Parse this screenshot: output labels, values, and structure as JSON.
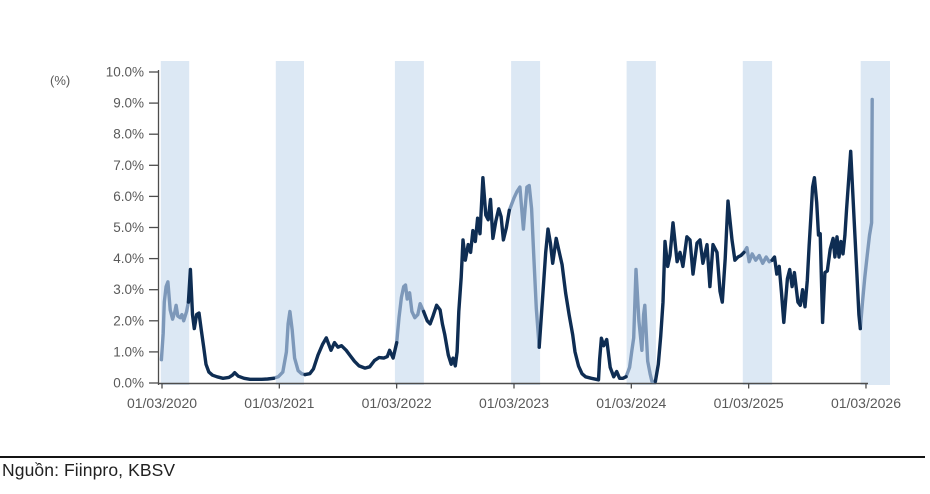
{
  "figure": {
    "unit_label": "(%)",
    "source": {
      "label": "Nguồn: Fiinpro, KBSV"
    }
  },
  "colors": {
    "line_dark": "#0e2d53",
    "line_light": "#7d98b9",
    "band_fill": "#dce8f4",
    "axis": "#4d4d4d",
    "tick_label": "#595959",
    "source_rule": "#141414",
    "source_text": "#212121",
    "background": "#ffffff"
  },
  "chart_data": {
    "type": "line",
    "title": "",
    "xlabel": "",
    "ylabel": "(%)",
    "grid": "off",
    "legend": "none",
    "ylim": [
      0,
      10
    ],
    "xlim_years_from_2020_03_01": [
      -0.04,
      6.27
    ],
    "y_tick_labels": [
      "0.0%",
      "1.0%",
      "2.0%",
      "3.0%",
      "4.0%",
      "5.0%",
      "6.0%",
      "7.0%",
      "8.0%",
      "9.0%",
      "10.0%"
    ],
    "x_tick_labels": [
      "01/03/2020",
      "01/03/2021",
      "01/03/2022",
      "01/03/2023",
      "01/03/2024",
      "01/03/2025",
      "01/03/2026"
    ],
    "x_tick_positions_years": [
      0,
      1,
      2,
      3,
      4,
      5,
      6
    ],
    "highlight_bands_x": [
      [
        -0.01,
        0.232
      ],
      [
        0.97,
        1.21
      ],
      [
        1.985,
        2.232
      ],
      [
        2.975,
        3.222
      ],
      [
        3.96,
        4.21
      ],
      [
        4.95,
        5.2
      ],
      [
        5.955,
        6.205
      ]
    ],
    "band_style": "vertical shaded annual periods; line rendered in light color inside bands, dark outside",
    "series": {
      "x_years_from_2020_03_01": [
        -0.005,
        0.01,
        0.02,
        0.035,
        0.05,
        0.07,
        0.09,
        0.11,
        0.12,
        0.135,
        0.155,
        0.17,
        0.185,
        0.21,
        0.225,
        0.242,
        0.26,
        0.275,
        0.295,
        0.315,
        0.335,
        0.355,
        0.375,
        0.4,
        0.43,
        0.47,
        0.52,
        0.57,
        0.6,
        0.62,
        0.65,
        0.7,
        0.75,
        0.8,
        0.85,
        0.9,
        0.95,
        0.99,
        1.03,
        1.06,
        1.075,
        1.09,
        1.11,
        1.13,
        1.16,
        1.19,
        1.22,
        1.26,
        1.29,
        1.33,
        1.37,
        1.4,
        1.44,
        1.47,
        1.5,
        1.53,
        1.57,
        1.6,
        1.64,
        1.68,
        1.73,
        1.77,
        1.81,
        1.85,
        1.89,
        1.92,
        1.94,
        1.97,
        2.0,
        2.02,
        2.04,
        2.06,
        2.075,
        2.09,
        2.11,
        2.13,
        2.155,
        2.18,
        2.2,
        2.23,
        2.26,
        2.285,
        2.31,
        2.34,
        2.37,
        2.39,
        2.41,
        2.44,
        2.465,
        2.48,
        2.5,
        2.515,
        2.53,
        2.55,
        2.565,
        2.585,
        2.61,
        2.63,
        2.65,
        2.67,
        2.69,
        2.71,
        2.735,
        2.76,
        2.78,
        2.8,
        2.82,
        2.845,
        2.87,
        2.89,
        2.91,
        2.935,
        2.96,
        3.0,
        3.025,
        3.05,
        3.08,
        3.11,
        3.13,
        3.15,
        3.17,
        3.19,
        3.215,
        3.24,
        3.27,
        3.29,
        3.31,
        3.33,
        3.36,
        3.38,
        3.41,
        3.44,
        3.47,
        3.5,
        3.52,
        3.55,
        3.58,
        3.61,
        3.66,
        3.7,
        3.72,
        3.73,
        3.745,
        3.765,
        3.79,
        3.82,
        3.85,
        3.875,
        3.9,
        3.93,
        3.955,
        3.985,
        4.005,
        4.02,
        4.04,
        4.065,
        4.09,
        4.105,
        4.115,
        4.14,
        4.16,
        4.175,
        4.205,
        4.23,
        4.25,
        4.27,
        4.287,
        4.31,
        4.33,
        4.355,
        4.39,
        4.415,
        4.44,
        4.474,
        4.5,
        4.526,
        4.56,
        4.585,
        4.61,
        4.645,
        4.67,
        4.696,
        4.73,
        4.756,
        4.775,
        4.8,
        4.824,
        4.858,
        4.883,
        4.909,
        4.934,
        4.96,
        4.985,
        5.005,
        5.03,
        5.06,
        5.09,
        5.12,
        5.15,
        5.175,
        5.2,
        5.22,
        5.24,
        5.26,
        5.28,
        5.3,
        5.33,
        5.35,
        5.37,
        5.39,
        5.42,
        5.44,
        5.46,
        5.48,
        5.5,
        5.515,
        5.53,
        5.545,
        5.56,
        5.58,
        5.595,
        5.61,
        5.63,
        5.65,
        5.67,
        5.695,
        5.72,
        5.735,
        5.753,
        5.77,
        5.787,
        5.804,
        5.82,
        5.835,
        5.87,
        5.9,
        5.923,
        5.94,
        5.952,
        5.97,
        5.99,
        6.01,
        6.03,
        6.048,
        6.053
      ],
      "values_pct": [
        0.75,
        1.6,
        2.6,
        3.1,
        3.25,
        2.35,
        2.05,
        2.3,
        2.5,
        2.15,
        2.1,
        2.2,
        2.0,
        2.3,
        2.6,
        3.65,
        2.2,
        1.75,
        2.2,
        2.25,
        1.7,
        1.15,
        0.6,
        0.35,
        0.25,
        0.2,
        0.15,
        0.18,
        0.25,
        0.33,
        0.22,
        0.15,
        0.12,
        0.12,
        0.12,
        0.13,
        0.15,
        0.2,
        0.35,
        1.0,
        1.9,
        2.3,
        1.7,
        0.8,
        0.4,
        0.3,
        0.27,
        0.3,
        0.45,
        0.9,
        1.25,
        1.45,
        1.05,
        1.3,
        1.15,
        1.2,
        1.05,
        0.9,
        0.7,
        0.55,
        0.48,
        0.52,
        0.72,
        0.82,
        0.8,
        0.85,
        1.05,
        0.8,
        1.3,
        2.1,
        2.75,
        3.1,
        3.15,
        2.7,
        2.9,
        2.3,
        2.1,
        2.2,
        2.55,
        2.3,
        2.0,
        1.9,
        2.15,
        2.5,
        2.35,
        1.9,
        1.55,
        0.9,
        0.6,
        0.8,
        0.55,
        1.0,
        2.3,
        3.4,
        4.6,
        3.95,
        4.45,
        4.2,
        4.9,
        4.55,
        5.3,
        4.8,
        6.6,
        5.4,
        5.25,
        5.9,
        4.65,
        5.2,
        5.6,
        5.35,
        4.6,
        5.0,
        5.55,
        5.95,
        6.15,
        6.3,
        4.95,
        6.3,
        6.35,
        5.6,
        4.0,
        2.4,
        1.15,
        2.5,
        4.2,
        4.95,
        4.5,
        3.85,
        4.65,
        4.3,
        3.8,
        2.9,
        2.2,
        1.55,
        1.0,
        0.55,
        0.3,
        0.2,
        0.15,
        0.12,
        0.1,
        0.75,
        1.44,
        1.2,
        1.4,
        0.5,
        0.2,
        0.37,
        0.15,
        0.15,
        0.2,
        0.5,
        1.05,
        1.45,
        3.65,
        2.0,
        1.05,
        2.2,
        2.5,
        0.7,
        0.3,
        0.05,
        0.05,
        0.6,
        1.5,
        2.6,
        4.55,
        3.75,
        4.1,
        5.15,
        3.9,
        4.2,
        3.75,
        4.7,
        4.6,
        3.5,
        4.5,
        4.6,
        3.85,
        4.45,
        3.1,
        4.45,
        4.2,
        2.95,
        2.6,
        4.0,
        5.85,
        4.6,
        3.95,
        4.05,
        4.1,
        4.2,
        4.35,
        3.9,
        4.15,
        3.95,
        4.1,
        3.85,
        4.05,
        3.9,
        3.95,
        4.05,
        3.5,
        3.75,
        2.9,
        1.95,
        3.35,
        3.65,
        3.1,
        3.55,
        2.6,
        2.5,
        3.0,
        2.45,
        3.3,
        4.4,
        5.3,
        6.3,
        6.6,
        5.8,
        4.76,
        4.8,
        1.95,
        3.55,
        3.6,
        4.3,
        4.65,
        4.05,
        4.7,
        4.05,
        4.55,
        4.15,
        4.75,
        5.6,
        7.45,
        5.2,
        3.5,
        2.2,
        1.75,
        2.6,
        3.4,
        4.1,
        4.75,
        5.15,
        9.12
      ]
    }
  }
}
